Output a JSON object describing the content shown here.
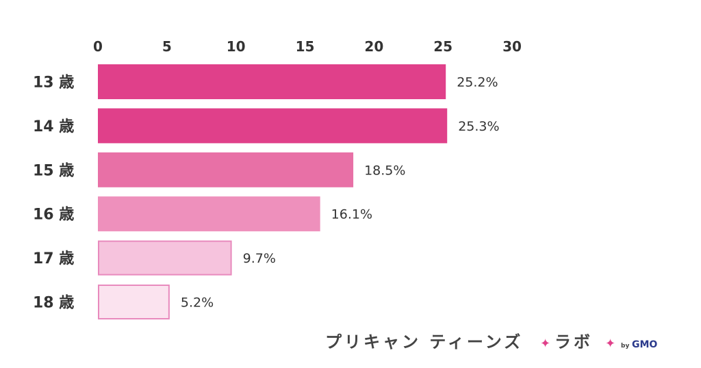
{
  "chart_data": {
    "type": "bar",
    "orientation": "horizontal",
    "categories": [
      "13 歳",
      "14 歳",
      "15 歳",
      "16 歳",
      "17 歳",
      "18 歳"
    ],
    "values": [
      25.2,
      25.3,
      18.5,
      16.1,
      9.7,
      5.2
    ],
    "value_labels": [
      "25.2%",
      "25.3%",
      "18.5%",
      "16.1%",
      "9.7%",
      "5.2%"
    ],
    "x_ticks": [
      "0",
      "5",
      "10",
      "15",
      "20",
      "25",
      "30"
    ],
    "xlim": [
      0,
      30
    ],
    "x_axis_position": "top",
    "grid": false,
    "bar_colors": [
      "#e0408a",
      "#e0408a",
      "#e870a6",
      "#ee90bc",
      "#f6c3dd",
      "#fbe3ef"
    ],
    "bar_borders": [
      "#e0408a",
      "#e0408a",
      "#e870a6",
      "#ee90bc",
      "#e88abd",
      "#e88abd"
    ]
  },
  "branding": {
    "main": "プリキャン ティーンズ",
    "sparkle_1": "✦",
    "lab": "ラボ",
    "sparkle_2": "✦",
    "by": "by",
    "company": "GMO",
    "sparkle_color": "#e0408a"
  }
}
